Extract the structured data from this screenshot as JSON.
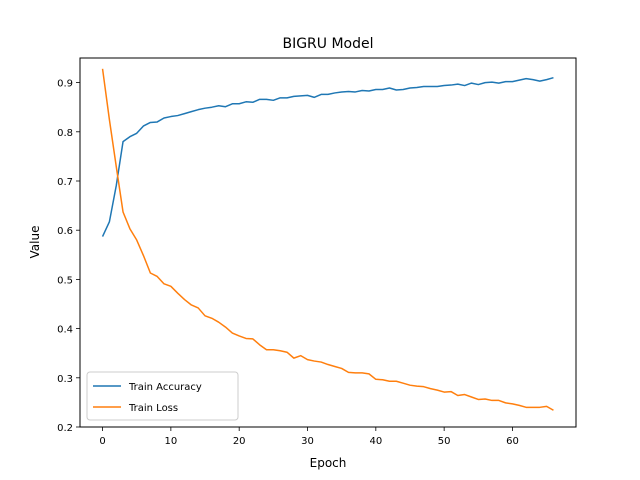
{
  "chart_data": {
    "type": "line",
    "title": "BIGRU Model",
    "xlabel": "Epoch",
    "ylabel": "Value",
    "xlim": [
      -3.3,
      69.3
    ],
    "ylim": [
      0.2,
      0.95
    ],
    "xticks": [
      0,
      10,
      20,
      30,
      40,
      50,
      60
    ],
    "xtick_labels": [
      "0",
      "10",
      "20",
      "30",
      "40",
      "50",
      "60"
    ],
    "yticks": [
      0.2,
      0.3,
      0.4,
      0.5,
      0.6,
      0.7,
      0.8,
      0.9
    ],
    "ytick_labels": [
      "0.2",
      "0.3",
      "0.4",
      "0.5",
      "0.6",
      "0.7",
      "0.8",
      "0.9"
    ],
    "grid": false,
    "legend_placement": "lower-left",
    "x": [
      0,
      1,
      2,
      3,
      4,
      5,
      6,
      7,
      8,
      9,
      10,
      11,
      12,
      13,
      14,
      15,
      16,
      17,
      18,
      19,
      20,
      21,
      22,
      23,
      24,
      25,
      26,
      27,
      28,
      29,
      30,
      31,
      32,
      33,
      34,
      35,
      36,
      37,
      38,
      39,
      40,
      41,
      42,
      43,
      44,
      45,
      46,
      47,
      48,
      49,
      50,
      51,
      52,
      53,
      54,
      55,
      56,
      57,
      58,
      59,
      60,
      61,
      62,
      63,
      64,
      65,
      66
    ],
    "series": [
      {
        "name": "Train Accuracy",
        "color": "#1f77b4",
        "values": [
          0.587,
          0.617,
          0.69,
          0.78,
          0.79,
          0.797,
          0.812,
          0.819,
          0.82,
          0.828,
          0.831,
          0.833,
          0.837,
          0.841,
          0.845,
          0.848,
          0.85,
          0.853,
          0.851,
          0.857,
          0.857,
          0.861,
          0.86,
          0.866,
          0.866,
          0.864,
          0.869,
          0.869,
          0.872,
          0.873,
          0.874,
          0.87,
          0.876,
          0.876,
          0.879,
          0.881,
          0.882,
          0.881,
          0.884,
          0.883,
          0.886,
          0.886,
          0.889,
          0.885,
          0.886,
          0.889,
          0.89,
          0.892,
          0.892,
          0.892,
          0.894,
          0.895,
          0.897,
          0.894,
          0.899,
          0.896,
          0.9,
          0.901,
          0.899,
          0.902,
          0.902,
          0.905,
          0.908,
          0.906,
          0.903,
          0.906,
          0.91
        ]
      },
      {
        "name": "Train Loss",
        "color": "#ff7f0e",
        "values": [
          0.928,
          0.825,
          0.73,
          0.637,
          0.603,
          0.58,
          0.548,
          0.513,
          0.506,
          0.491,
          0.486,
          0.472,
          0.459,
          0.448,
          0.442,
          0.426,
          0.421,
          0.413,
          0.403,
          0.391,
          0.385,
          0.38,
          0.379,
          0.367,
          0.357,
          0.357,
          0.355,
          0.352,
          0.34,
          0.345,
          0.337,
          0.334,
          0.332,
          0.327,
          0.323,
          0.319,
          0.311,
          0.31,
          0.31,
          0.308,
          0.297,
          0.296,
          0.293,
          0.293,
          0.289,
          0.285,
          0.283,
          0.282,
          0.278,
          0.275,
          0.271,
          0.272,
          0.264,
          0.266,
          0.261,
          0.256,
          0.257,
          0.254,
          0.254,
          0.249,
          0.247,
          0.244,
          0.24,
          0.24,
          0.24,
          0.242,
          0.234
        ]
      }
    ]
  }
}
